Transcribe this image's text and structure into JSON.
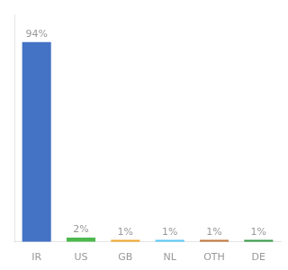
{
  "chart_data": {
    "type": "bar",
    "categories": [
      "IR",
      "US",
      "GB",
      "NL",
      "OTH",
      "DE"
    ],
    "values": [
      94,
      2,
      1,
      1,
      1,
      1
    ],
    "value_labels": [
      "94%",
      "2%",
      "1%",
      "1%",
      "1%",
      "1%"
    ],
    "colors": [
      "#4472c4",
      "#4db84d",
      "#f0a830",
      "#5bc8f5",
      "#c07840",
      "#3a9a4a"
    ],
    "ylim": [
      0,
      107
    ],
    "grid": false,
    "data_labels": true,
    "tick_labels": "x"
  }
}
